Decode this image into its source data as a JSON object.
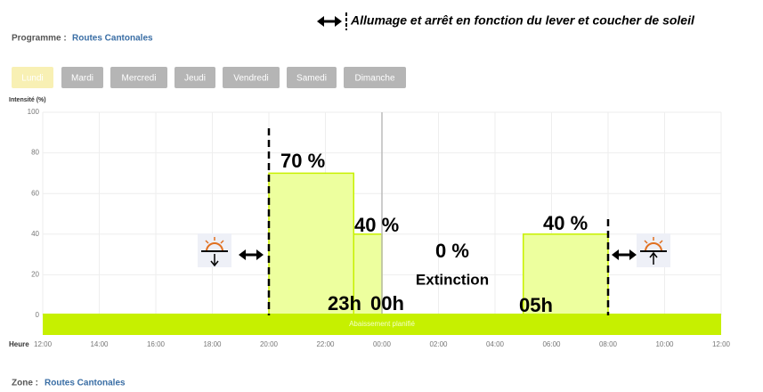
{
  "program_label": "Programme :",
  "program_name": "Routes Cantonales",
  "zone_label": "Zone :",
  "zone_name": "Routes Cantonales",
  "headline": "Allumage et arrêt en fonction du lever et coucher de soleil",
  "days": [
    "Lundi",
    "Mardi",
    "Mercredi",
    "Jeudi",
    "Vendredi",
    "Samedi",
    "Dimanche"
  ],
  "chart_data": {
    "type": "step",
    "y_label": "Intensité (%)",
    "x_label": "Heure",
    "x": [
      8,
      11,
      12,
      17
    ],
    "x_end": [
      11,
      12,
      17,
      20
    ],
    "values": [
      70,
      40,
      0,
      40
    ],
    "value_labels": [
      "70 %",
      "40 %",
      "0 %",
      "40 %"
    ],
    "color": "#edff9e",
    "annotations": [
      "Extinction",
      "23h",
      "00h",
      "05h"
    ],
    "baseline_label": "Abaissement planifié",
    "xlim": [
      0,
      24
    ],
    "ylim": [
      0,
      100
    ],
    "yticks": [
      0,
      20,
      40,
      60,
      80,
      100
    ],
    "xticks": [
      {
        "value": 0,
        "label": "12:00"
      },
      {
        "value": 2,
        "label": "14:00"
      },
      {
        "value": 4,
        "label": "16:00"
      },
      {
        "value": 6,
        "label": "18:00"
      },
      {
        "value": 8,
        "label": "20:00"
      },
      {
        "value": 10,
        "label": "22:00"
      },
      {
        "value": 12,
        "label": "00:00"
      },
      {
        "value": 14,
        "label": "02:00"
      },
      {
        "value": 16,
        "label": "04:00"
      },
      {
        "value": 18,
        "label": "06:00"
      },
      {
        "value": 20,
        "label": "08:00"
      },
      {
        "value": 22,
        "label": "10:00"
      },
      {
        "value": 24,
        "label": "12:00"
      }
    ],
    "grid": true
  }
}
